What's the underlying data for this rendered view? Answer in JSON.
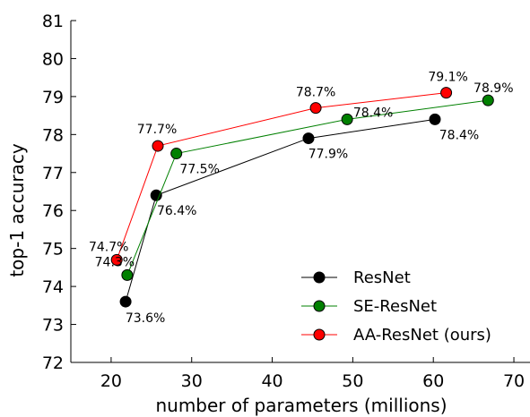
{
  "chart_data": {
    "type": "line",
    "xlabel": "number of parameters (millions)",
    "ylabel": "top-1 accuracy",
    "xlim": [
      15,
      72
    ],
    "ylim": [
      72,
      81
    ],
    "xticks": [
      20,
      30,
      40,
      50,
      60,
      70
    ],
    "yticks": [
      72,
      73,
      74,
      75,
      76,
      77,
      78,
      79,
      80,
      81
    ],
    "grid": false,
    "legend_position": "bottom-right",
    "series": [
      {
        "name": "ResNet",
        "color": "#000000",
        "points": [
          {
            "x": 21.8,
            "y": 73.6,
            "label": "73.6%"
          },
          {
            "x": 25.6,
            "y": 76.4,
            "label": "76.4%"
          },
          {
            "x": 44.5,
            "y": 77.9,
            "label": "77.9%"
          },
          {
            "x": 60.2,
            "y": 78.4,
            "label": "78.4%"
          }
        ]
      },
      {
        "name": "SE-ResNet",
        "color": "#008000",
        "points": [
          {
            "x": 22.0,
            "y": 74.3,
            "label": "74.3%"
          },
          {
            "x": 28.1,
            "y": 77.5,
            "label": "77.5%"
          },
          {
            "x": 49.3,
            "y": 78.4,
            "label": "78.4%"
          },
          {
            "x": 66.8,
            "y": 78.9,
            "label": "78.9%"
          }
        ]
      },
      {
        "name": "AA-ResNet (ours)",
        "color": "#ff0000",
        "points": [
          {
            "x": 20.7,
            "y": 74.7,
            "label": "74.7%"
          },
          {
            "x": 25.8,
            "y": 77.7,
            "label": "77.7%"
          },
          {
            "x": 45.4,
            "y": 78.7,
            "label": "78.7%"
          },
          {
            "x": 61.6,
            "y": 79.1,
            "label": "79.1%"
          }
        ]
      }
    ]
  }
}
